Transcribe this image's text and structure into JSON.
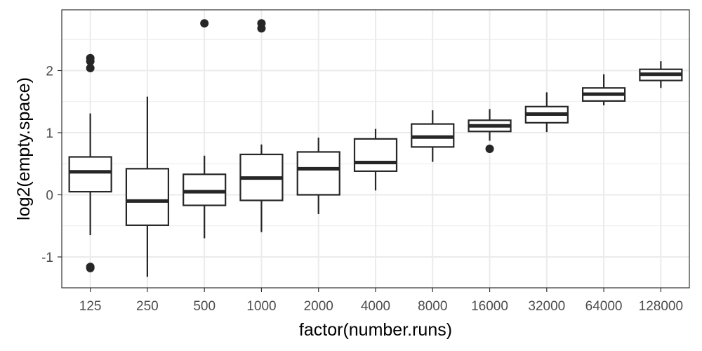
{
  "chart_data": {
    "type": "boxplot",
    "xlabel": "factor(number.runs)",
    "ylabel": "log2(empty.space)",
    "ylim": [
      -1.5,
      2.95
    ],
    "yticks": [
      -1,
      0,
      1,
      2
    ],
    "ytick_labels": [
      "-1",
      "0",
      "1",
      "2"
    ],
    "grid": true,
    "categories": [
      "125",
      "250",
      "500",
      "1000",
      "2000",
      "4000",
      "8000",
      "16000",
      "32000",
      "64000",
      "128000"
    ],
    "boxes": [
      {
        "category": "125",
        "whisker_low": -0.65,
        "q1": 0.05,
        "median": 0.37,
        "q3": 0.61,
        "whisker_high": 1.31,
        "outliers": [
          2.2,
          2.15,
          2.04,
          -1.16,
          -1.18
        ]
      },
      {
        "category": "250",
        "whisker_low": -1.32,
        "q1": -0.49,
        "median": -0.1,
        "q3": 0.42,
        "whisker_high": 1.58,
        "outliers": []
      },
      {
        "category": "500",
        "whisker_low": -0.7,
        "q1": -0.17,
        "median": 0.05,
        "q3": 0.33,
        "whisker_high": 0.63,
        "outliers": [
          2.76
        ]
      },
      {
        "category": "1000",
        "whisker_low": -0.6,
        "q1": -0.09,
        "median": 0.27,
        "q3": 0.65,
        "whisker_high": 0.81,
        "outliers": [
          2.76,
          2.68
        ]
      },
      {
        "category": "2000",
        "whisker_low": -0.31,
        "q1": 0.0,
        "median": 0.42,
        "q3": 0.69,
        "whisker_high": 0.92,
        "outliers": []
      },
      {
        "category": "4000",
        "whisker_low": 0.07,
        "q1": 0.38,
        "median": 0.52,
        "q3": 0.9,
        "whisker_high": 1.06,
        "outliers": []
      },
      {
        "category": "8000",
        "whisker_low": 0.53,
        "q1": 0.77,
        "median": 0.93,
        "q3": 1.14,
        "whisker_high": 1.36,
        "outliers": []
      },
      {
        "category": "16000",
        "whisker_low": 0.87,
        "q1": 1.02,
        "median": 1.11,
        "q3": 1.2,
        "whisker_high": 1.38,
        "outliers": [
          0.74
        ]
      },
      {
        "category": "32000",
        "whisker_low": 1.01,
        "q1": 1.16,
        "median": 1.3,
        "q3": 1.42,
        "whisker_high": 1.65,
        "outliers": []
      },
      {
        "category": "64000",
        "whisker_low": 1.44,
        "q1": 1.51,
        "median": 1.62,
        "q3": 1.72,
        "whisker_high": 1.94,
        "outliers": []
      },
      {
        "category": "128000",
        "whisker_low": 1.72,
        "q1": 1.84,
        "median": 1.94,
        "q3": 2.02,
        "whisker_high": 2.15,
        "outliers": []
      }
    ],
    "colors": {
      "box_line": "#262626",
      "box_fill": "#ffffff",
      "grid": "#ebebeb",
      "panel_border": "#333333"
    }
  }
}
